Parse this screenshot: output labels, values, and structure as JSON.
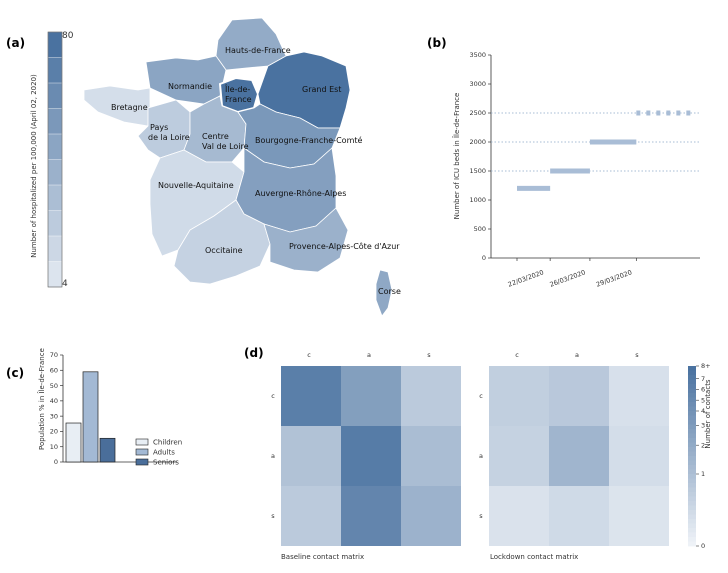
{
  "panels": {
    "a": "(a)",
    "b": "(b)",
    "c": "(c)",
    "d": "(d)"
  },
  "colors": {
    "scale_light": "#dce4ee",
    "scale_dark": "#4a72a0",
    "bar_b": "#a9bdd6",
    "line_b": "#8aa6c8"
  },
  "chart_data": [
    {
      "type": "heatmap",
      "id": "map-a",
      "description_label": "choropleth",
      "colorbar": {
        "label": "Number of hospitalized per 100,000  (April 02, 2020)",
        "min_label": "4",
        "max_label": "80",
        "min": 4,
        "max": 80,
        "steps": 10
      },
      "regions": [
        {
          "name": "Hauts-de-France",
          "value": 42
        },
        {
          "name": "Normandie",
          "value": 46
        },
        {
          "name": "Île-de-France",
          "value": 80
        },
        {
          "name": "Grand Est",
          "value": 80
        },
        {
          "name": "Bretagne",
          "value": 8
        },
        {
          "name": "Pays de la Loire",
          "value": 20
        },
        {
          "name": "Centre Val de Loire",
          "value": 32
        },
        {
          "name": "Bourgogne-Franche-Comté",
          "value": 55
        },
        {
          "name": "Nouvelle-Aquitaine",
          "value": 10
        },
        {
          "name": "Auvergne-Rhône-Alpes",
          "value": 50
        },
        {
          "name": "Occitaine",
          "value": 16
        },
        {
          "name": "Provence-Alpes-Côte d'Azur",
          "value": 38
        },
        {
          "name": "Corse",
          "value": 44
        }
      ]
    },
    {
      "type": "line",
      "id": "icu-b",
      "ylabel": "Number of ICU beds in Île-de-France",
      "ylim": [
        0,
        3500
      ],
      "yticks": [
        0,
        500,
        1000,
        1500,
        2000,
        2500,
        3000,
        3500
      ],
      "xticks": [
        "22/03/2020",
        "26/03/2020",
        "29/03/2020"
      ],
      "segments": [
        {
          "x_start": 0.0,
          "x_end": 1.0,
          "y": 1200,
          "style": "solid"
        },
        {
          "x_start": 1.0,
          "x_end": 2.2,
          "y": 1500,
          "style": "solid"
        },
        {
          "x_start": 2.2,
          "x_end": 3.6,
          "y": 2000,
          "style": "solid"
        },
        {
          "x_start": 3.6,
          "x_end": 5.4,
          "y": 2500,
          "style": "dashed"
        }
      ],
      "guides": [
        1500,
        2000,
        2500
      ],
      "xrange": [
        0,
        5.4
      ]
    },
    {
      "type": "bar",
      "id": "pop-c",
      "ylabel": "Population % in Île-de-France",
      "ylim": [
        0,
        70
      ],
      "yticks": [
        0,
        10,
        20,
        30,
        40,
        50,
        60,
        70
      ],
      "series": [
        {
          "name": "Children",
          "value": 25.5,
          "color": "#e8eef4"
        },
        {
          "name": "Adults",
          "value": 59,
          "color": "#a3b9d4"
        },
        {
          "name": "Seniors",
          "value": 15.5,
          "color": "#4a6e9a"
        }
      ]
    },
    {
      "type": "heatmap",
      "id": "contact-d",
      "labels": [
        "c",
        "a",
        "s"
      ],
      "matrices": [
        {
          "title": "Baseline contact matrix",
          "values": [
            [
              7.2,
              5.2,
              2.5
            ],
            [
              3.0,
              7.4,
              3.3
            ],
            [
              2.5,
              6.8,
              4.0
            ]
          ]
        },
        {
          "title": "Lockdown contact matrix",
          "values": [
            [
              2.2,
              2.6,
              1.1
            ],
            [
              2.0,
              3.8,
              1.3
            ],
            [
              1.0,
              1.5,
              0.9
            ]
          ]
        }
      ],
      "colorbar": {
        "label": "Number of contacts",
        "ticks": [
          "0",
          "1",
          "2",
          "3",
          "4",
          "5",
          "6",
          "7",
          "8+"
        ],
        "min": 0,
        "max": 8
      }
    }
  ]
}
